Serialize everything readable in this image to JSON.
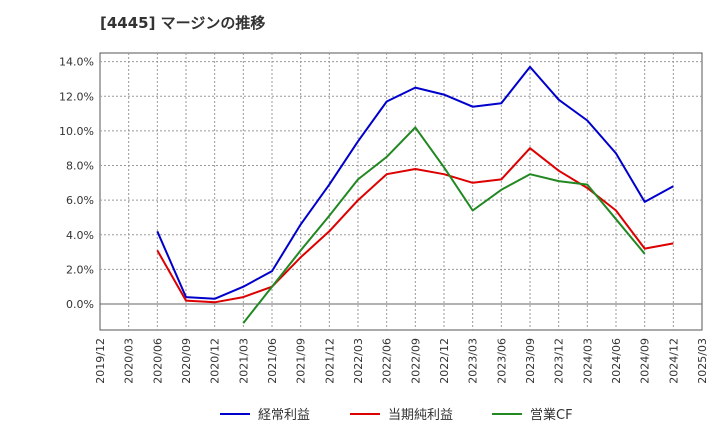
{
  "chart_data": {
    "type": "line",
    "title": "[4445]  マージンの推移",
    "x": [
      "2019/12",
      "2020/03",
      "2020/06",
      "2020/09",
      "2020/12",
      "2021/03",
      "2021/06",
      "2021/09",
      "2021/12",
      "2022/03",
      "2022/06",
      "2022/09",
      "2022/12",
      "2023/03",
      "2023/06",
      "2023/09",
      "2023/12",
      "2024/03",
      "2024/06",
      "2024/09",
      "2024/12",
      "2025/03"
    ],
    "ylim": [
      -1.5,
      14.5
    ],
    "yticks": [
      0,
      2,
      4,
      6,
      8,
      10,
      12,
      14
    ],
    "ytick_labels": [
      "0.0%",
      "2.0%",
      "4.0%",
      "6.0%",
      "8.0%",
      "10.0%",
      "12.0%",
      "14.0%"
    ],
    "grid": true,
    "legend_position": "bottom",
    "series": [
      {
        "name": "経常利益",
        "color": "#0000cc",
        "values": [
          null,
          null,
          4.2,
          0.4,
          0.3,
          1.0,
          1.9,
          4.6,
          6.9,
          9.4,
          11.7,
          12.5,
          12.1,
          11.4,
          11.6,
          13.7,
          11.8,
          10.6,
          8.7,
          5.9,
          6.8,
          null
        ]
      },
      {
        "name": "当期純利益",
        "color": "#dd0000",
        "values": [
          null,
          null,
          3.1,
          0.2,
          0.1,
          0.4,
          1.0,
          2.7,
          4.2,
          6.0,
          7.5,
          7.8,
          7.5,
          7.0,
          7.2,
          9.0,
          7.7,
          6.7,
          5.4,
          3.2,
          3.5,
          null
        ]
      },
      {
        "name": "営業CF",
        "color": "#228822",
        "values": [
          null,
          null,
          null,
          null,
          null,
          -1.1,
          1.0,
          3.1,
          5.1,
          7.2,
          8.5,
          10.2,
          7.9,
          5.4,
          6.6,
          7.5,
          7.1,
          6.9,
          4.9,
          2.9,
          null,
          null
        ]
      }
    ]
  }
}
